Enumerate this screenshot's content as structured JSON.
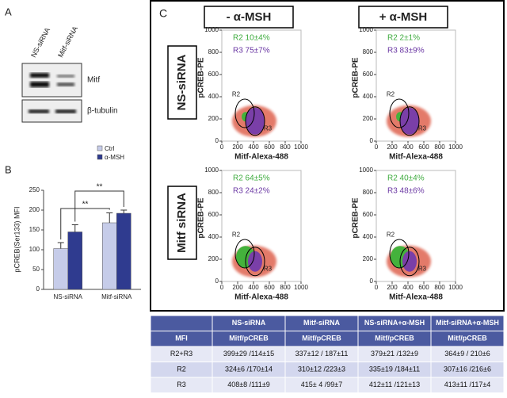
{
  "panel_a": {
    "label": "A",
    "lanes": [
      "NS-siRNA",
      "Mitf-siRNA"
    ],
    "bands": [
      "Mitf",
      "β-tubulin"
    ]
  },
  "chart_data": {
    "type": "bar",
    "panel_label": "B",
    "ylabel": "pCREB(Ser133) MFI",
    "categories": [
      "NS-siRNA",
      "Mitf-siRNA"
    ],
    "series": [
      {
        "name": "Ctrl",
        "color": "#c6cce9",
        "values": [
          103,
          168
        ],
        "errors": [
          15,
          25
        ]
      },
      {
        "name": "α-MSH",
        "color": "#2f3b8f",
        "values": [
          145,
          192
        ],
        "errors": [
          18,
          8
        ]
      }
    ],
    "ylim": [
      0,
      250
    ],
    "yticks": [
      0,
      50,
      100,
      150,
      200,
      250
    ],
    "annotations": [
      "**",
      "**"
    ]
  },
  "panel_c": {
    "label": "C",
    "columns": [
      "- α-MSH",
      "+ α-MSH"
    ],
    "rows": [
      "NS-siRNA",
      "Mitf siRNA"
    ],
    "xlabel": "Mitf-Alexa-488",
    "ylabel": "pCREB-PE",
    "xlim": [
      0,
      1000
    ],
    "ylim": [
      0,
      1000
    ],
    "xticks": [
      0,
      200,
      400,
      600,
      800,
      1000
    ],
    "yticks": [
      0,
      200,
      400,
      600,
      800,
      1000
    ],
    "gate_labels": [
      "R2",
      "R3"
    ],
    "plots": [
      {
        "r2": "R2 10±4%",
        "r3": "R3 75±7%"
      },
      {
        "r2": "R2 2±1%",
        "r3": "R3 83±9%"
      },
      {
        "r2": "R2 64±5%",
        "r3": "R3 24±2%"
      },
      {
        "r2": "R2 40±4%",
        "r3": "R3 48±6%"
      }
    ]
  },
  "table": {
    "header": [
      "",
      "NS-siRNA",
      "Mitf-siRNA",
      "NS-siRNA+α-MSH",
      "Mitf-siRNA+α-MSH"
    ],
    "subheader": [
      "MFI",
      "Mitf/pCREB",
      "Mitf/pCREB",
      "Mitf/pCREB",
      "Mitf/pCREB"
    ],
    "rows": [
      [
        "R2+R3",
        "399±29 /114±15",
        "337±12 / 187±11",
        "379±21 /132±9",
        "364±9 / 210±6"
      ],
      [
        "R2",
        "324±6 /170±14",
        "310±12 /223±3",
        "335±19 /184±11",
        "307±16 /216±6"
      ],
      [
        "R3",
        "408±8 /111±9",
        "415± 4 /99±7",
        "412±11 /121±13",
        "413±11 /117±4"
      ]
    ]
  }
}
